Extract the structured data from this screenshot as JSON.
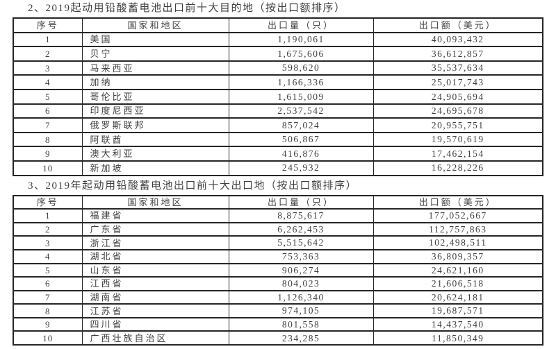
{
  "page": {
    "background_color": "#ffffff",
    "text_color": "#3f3f3f",
    "border_color": "#262626"
  },
  "tables": [
    {
      "title": "2、2019起动用铅酸蓄电池出口前十大目的地（按出口额排序）",
      "headers": [
        "序号",
        "国家和地区",
        "出口量（只）",
        "出口额（美元）"
      ],
      "rows": [
        [
          "1",
          "美国",
          "1,190,061",
          "40,093,432"
        ],
        [
          "2",
          "贝宁",
          "1,675,606",
          "36,612,857"
        ],
        [
          "3",
          "马来西亚",
          "598,620",
          "35,537,634"
        ],
        [
          "4",
          "加纳",
          "1,166,336",
          "25,017,743"
        ],
        [
          "5",
          "哥伦比亚",
          "1,615,009",
          "24,905,694"
        ],
        [
          "6",
          "印度尼西亚",
          "2,537,542",
          "24,695,678"
        ],
        [
          "7",
          "俄罗斯联邦",
          "857,024",
          "20,955,751"
        ],
        [
          "8",
          "阿联酋",
          "506,867",
          "19,570,619"
        ],
        [
          "9",
          "澳大利亚",
          "416,876",
          "17,462,154"
        ],
        [
          "10",
          "新加坡",
          "245,932",
          "16,228,226"
        ]
      ]
    },
    {
      "title": "3、2019年起动用铅酸蓄电池出口前十大出口地（按出口额排序）",
      "headers": [
        "序号",
        "国家和地区",
        "出口量（只）",
        "出口额（美元）"
      ],
      "rows": [
        [
          "1",
          "福建省",
          "8,875,617",
          "177,052,667"
        ],
        [
          "2",
          "广东省",
          "6,262,453",
          "112,757,863"
        ],
        [
          "3",
          "浙江省",
          "5,515,642",
          "102,498,511"
        ],
        [
          "4",
          "湖北省",
          "753,363",
          "36,809,357"
        ],
        [
          "5",
          "山东省",
          "906,274",
          "24,621,160"
        ],
        [
          "6",
          "江西省",
          "804,023",
          "21,606,518"
        ],
        [
          "7",
          "湖南省",
          "1,126,340",
          "20,624,181"
        ],
        [
          "8",
          "江苏省",
          "974,105",
          "19,687,571"
        ],
        [
          "9",
          "四川省",
          "801,558",
          "14,437,540"
        ],
        [
          "10",
          "广西壮族自治区",
          "234,285",
          "11,850,349"
        ]
      ]
    }
  ]
}
